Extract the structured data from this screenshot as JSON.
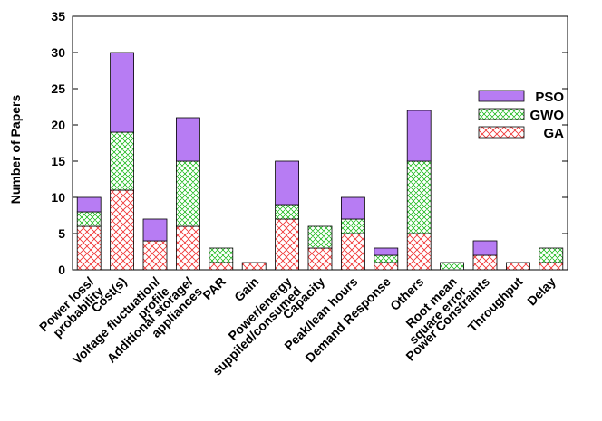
{
  "chart_data": {
    "type": "bar",
    "stacked": true,
    "ylabel": "Number of Papers",
    "xlabel": "",
    "ylim": [
      0,
      35
    ],
    "yticks": [
      0,
      5,
      10,
      15,
      20,
      25,
      30,
      35
    ],
    "grid": false,
    "legend_position": "top-right",
    "categories": [
      [
        "Power loss/",
        "probability"
      ],
      [
        "Cost(s)"
      ],
      [
        "Voltage fluctuation/",
        "profile"
      ],
      [
        "Additional storage/",
        "appliances"
      ],
      [
        "PAR"
      ],
      [
        "Gain"
      ],
      [
        "Power/energy",
        "suppiled/consumed"
      ],
      [
        "Capacity"
      ],
      [
        "Peak/lean hours"
      ],
      [
        "Demand Response"
      ],
      [
        "Others"
      ],
      [
        "Root mean",
        "square error"
      ],
      [
        "Power Constraints"
      ],
      [
        "Throughput"
      ],
      [
        "Delay"
      ]
    ],
    "series": [
      {
        "name": "GA",
        "color": "#ff0000",
        "pattern": "crosshatch-red",
        "values": [
          6,
          11,
          4,
          6,
          1,
          1,
          7,
          3,
          5,
          1,
          5,
          0,
          2,
          1,
          1
        ]
      },
      {
        "name": "GWO",
        "color": "#00c000",
        "pattern": "crosshatch-green",
        "values": [
          2,
          8,
          0,
          9,
          2,
          0,
          2,
          3,
          2,
          1,
          10,
          1,
          0,
          0,
          2
        ]
      },
      {
        "name": "PSO",
        "color": "#b77cf3",
        "pattern": "solid-purple",
        "values": [
          2,
          11,
          3,
          6,
          0,
          0,
          6,
          0,
          3,
          1,
          7,
          0,
          2,
          0,
          0
        ]
      }
    ],
    "legend_order": [
      "PSO",
      "GWO",
      "GA"
    ]
  }
}
